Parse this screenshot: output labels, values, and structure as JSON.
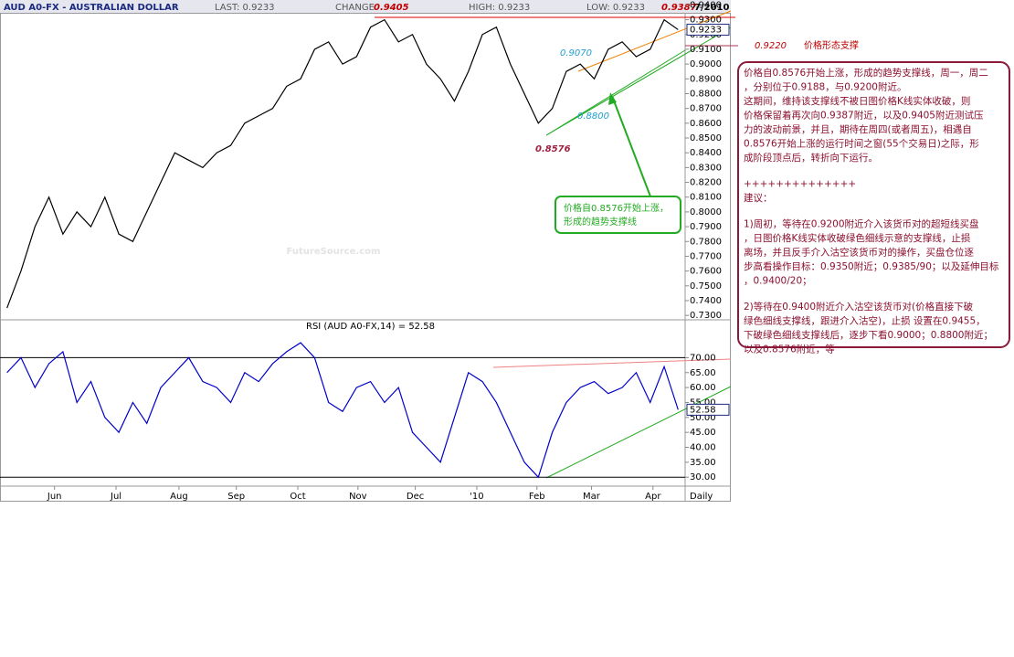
{
  "header": {
    "symbol": "AUD A0-FX - AUSTRALIAN DOLLAR",
    "last": "LAST: 0.9233",
    "change": "CHANGE",
    "high": "HIGH: 0.9233",
    "low": "LOW: 0.9233",
    "date": "7/2010"
  },
  "watermark": "FutureSource.com",
  "annotations": {
    "high_a": "0.9405",
    "high_b": "0.9387",
    "low": "0.8576",
    "support_level": "0.9220",
    "support_text": "价格形态支撑",
    "cyan_a": "0.9070",
    "cyan_b": "0.8800",
    "period": "Daily",
    "callout": [
      "价格自0.8576开始上涨，",
      "形成的趋势支撑线"
    ]
  },
  "note": [
    [
      "价格自0.8576开始上涨，形成的趋势支撑线，周一，周二",
      "，分别位于0.9188，与0.9200附近。",
      "这期间，维持该支撑线不被日图价格K线实体收破，则",
      "价格保留着再次向0.9387附近，以及0.9405附近测试压",
      "力的波动前景，并且，期待在周四(或者周五)，相遇自",
      "0.8576开始上涨的运行时间之窗(55个交易日)之际，形",
      "成阶段顶点后，转折向下运行。"
    ],
    [
      "++++++++++++++",
      "建议："
    ],
    [
      "1)周初，等待在0.9200附近介入该货币对的超短线买盘",
      "，日图价格K线实体收破绿色细线示意的支撑线，止损",
      "离场，并且反手介入沽空该货币对的操作，买盘仓位逐",
      "步高看操作目标：0.9350附近；0.9385/90；以及延伸目标",
      "，0.9400/20；"
    ],
    [
      "2)等待在0.9400附近介入沽空该货币对(价格直接下破",
      "绿色细线支撑线，跟进介入沽空)，止损 设置在0.9455，",
      "下破绿色细线支撑线后，逐步下看0.9000；0.8800附近；",
      "以及0.8576附近，等"
    ]
  ],
  "chart_data": [
    {
      "type": "line",
      "x": [
        0,
        1,
        2,
        3,
        4,
        5,
        6,
        7,
        8,
        9,
        10,
        11,
        12,
        13,
        14,
        15,
        16,
        17,
        18,
        19,
        20,
        21,
        22,
        23,
        24,
        25,
        26,
        27,
        28,
        29,
        30,
        31,
        32,
        33,
        34,
        35,
        36,
        37,
        38,
        39,
        40,
        41,
        42,
        43,
        44,
        45,
        46,
        47,
        48
      ],
      "series": [
        {
          "color": "#000000",
          "values": [
            0.735,
            0.76,
            0.79,
            0.81,
            0.785,
            0.8,
            0.79,
            0.81,
            0.785,
            0.78,
            0.8,
            0.82,
            0.84,
            0.835,
            0.83,
            0.84,
            0.845,
            0.86,
            0.865,
            0.87,
            0.885,
            0.89,
            0.91,
            0.915,
            0.9,
            0.905,
            0.925,
            0.93,
            0.915,
            0.92,
            0.9,
            0.89,
            0.875,
            0.895,
            0.92,
            0.925,
            0.9,
            0.88,
            0.86,
            0.87,
            0.895,
            0.9,
            0.89,
            0.91,
            0.915,
            0.905,
            0.91,
            0.93,
            0.9233
          ]
        }
      ],
      "xlim": [
        -0.5,
        48.5
      ],
      "ylim": [
        0.727,
        0.9415
      ],
      "yticks": [
        {
          "value": 0.94,
          "label": "0.9400"
        },
        {
          "value": 0.93,
          "label": "0.9300"
        },
        {
          "value": 0.92,
          "label": "0.9200"
        },
        {
          "value": 0.91,
          "label": "0.9100"
        },
        {
          "value": 0.9,
          "label": "0.9000"
        },
        {
          "value": 0.89,
          "label": "0.8900"
        },
        {
          "value": 0.88,
          "label": "0.8800"
        },
        {
          "value": 0.87,
          "label": "0.8700"
        },
        {
          "value": 0.86,
          "label": "0.8600"
        },
        {
          "value": 0.85,
          "label": "0.8500"
        },
        {
          "value": 0.84,
          "label": "0.8400"
        },
        {
          "value": 0.83,
          "label": "0.8300"
        },
        {
          "value": 0.82,
          "label": "0.8200"
        },
        {
          "value": 0.81,
          "label": "0.8100"
        },
        {
          "value": 0.8,
          "label": "0.8000"
        },
        {
          "value": 0.79,
          "label": "0.7900"
        },
        {
          "value": 0.78,
          "label": "0.7800"
        },
        {
          "value": 0.77,
          "label": "0.7700"
        },
        {
          "value": 0.76,
          "label": "0.7600"
        },
        {
          "value": 0.75,
          "label": "0.7500"
        },
        {
          "value": 0.74,
          "label": "0.7400"
        },
        {
          "value": 0.73,
          "label": "0.7300"
        }
      ]
    },
    {
      "type": "line",
      "title": "RSI (AUD A0-FX,14) = 52.58",
      "x": [
        0,
        1,
        2,
        3,
        4,
        5,
        6,
        7,
        8,
        9,
        10,
        11,
        12,
        13,
        14,
        15,
        16,
        17,
        18,
        19,
        20,
        21,
        22,
        23,
        24,
        25,
        26,
        27,
        28,
        29,
        30,
        31,
        32,
        33,
        34,
        35,
        36,
        37,
        38,
        39,
        40,
        41,
        42,
        43,
        44,
        45,
        46,
        47,
        48
      ],
      "series": [
        {
          "color": "#0000cc",
          "values": [
            65,
            70,
            60,
            68,
            72,
            55,
            62,
            50,
            45,
            55,
            48,
            60,
            65,
            70,
            62,
            60,
            55,
            65,
            62,
            68,
            72,
            75,
            70,
            55,
            52,
            60,
            62,
            55,
            60,
            45,
            40,
            35,
            50,
            65,
            62,
            55,
            45,
            35,
            30,
            45,
            55,
            60,
            62,
            58,
            60,
            65,
            55,
            67,
            52.58
          ]
        }
      ],
      "xlim": [
        -0.5,
        48.5
      ],
      "ylim": [
        27,
        79
      ],
      "hlines": [
        70,
        30
      ],
      "yticks": [
        {
          "value": 70,
          "label": "70.00"
        },
        {
          "value": 65,
          "label": "65.00"
        },
        {
          "value": 60,
          "label": "60.00"
        },
        {
          "value": 55,
          "label": "55.00"
        },
        {
          "value": 50,
          "label": "50.00"
        },
        {
          "value": 45,
          "label": "45.00"
        },
        {
          "value": 40,
          "label": "40.00"
        },
        {
          "value": 35,
          "label": "35.00"
        },
        {
          "value": 30,
          "label": "30.00"
        }
      ],
      "xticks": [
        {
          "value": 3.4,
          "label": "Jun"
        },
        {
          "value": 7.8,
          "label": "Jul"
        },
        {
          "value": 12.3,
          "label": "Aug"
        },
        {
          "value": 16.4,
          "label": "Sep"
        },
        {
          "value": 20.8,
          "label": "Oct"
        },
        {
          "value": 25.1,
          "label": "Nov"
        },
        {
          "value": 29.2,
          "label": "Dec"
        },
        {
          "value": 33.6,
          "label": "'10"
        },
        {
          "value": 37.9,
          "label": "Feb"
        },
        {
          "value": 41.8,
          "label": "Mar"
        },
        {
          "value": 46.2,
          "label": "Apr"
        }
      ]
    }
  ]
}
